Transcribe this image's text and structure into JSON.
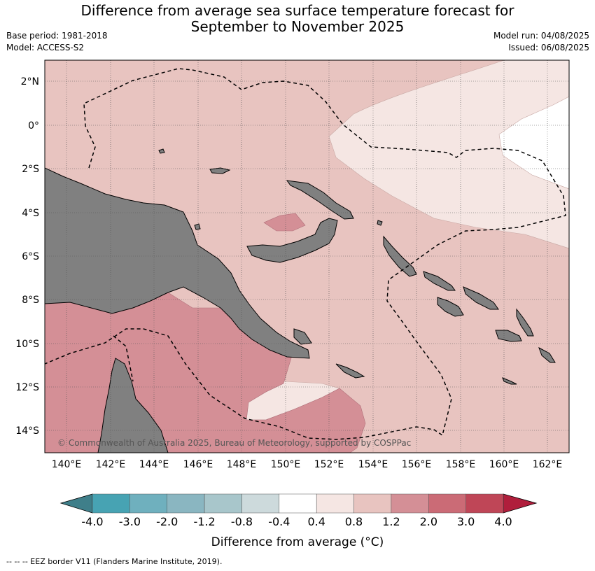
{
  "header": {
    "title_line1": "Difference from average sea surface temperature forecast for",
    "title_line2": "September to November 2025",
    "base_period": "Base period: 1981-2018",
    "model": "Model: ACCESS-S2",
    "model_run": "Model run: 04/08/2025",
    "issued": "Issued: 06/08/2025"
  },
  "map": {
    "lon_labels": [
      "140°E",
      "142°E",
      "144°E",
      "146°E",
      "148°E",
      "150°E",
      "152°E",
      "154°E",
      "156°E",
      "158°E",
      "160°E",
      "162°E"
    ],
    "lat_labels": [
      "2°N",
      "0°",
      "2°S",
      "4°S",
      "6°S",
      "8°S",
      "10°S",
      "12°S",
      "14°S"
    ],
    "copyright": "© Commonwealth of Australia 2025, Bureau of Meteorology, supported by COSPPac",
    "colors": {
      "land": "#808080",
      "grid": "#555555"
    }
  },
  "colorbar": {
    "boundaries": [
      "-4.0",
      "-3.0",
      "-2.0",
      "-1.2",
      "-0.8",
      "-0.4",
      "0.4",
      "0.8",
      "1.2",
      "2.0",
      "3.0",
      "4.0"
    ],
    "colors": [
      "#3f7f8a",
      "#47a3b3",
      "#6fb0be",
      "#8ab6c1",
      "#a8c6cb",
      "#cddadc",
      "#ffffff",
      "#f5e6e3",
      "#e8c4c0",
      "#d48f96",
      "#cb6b76",
      "#bf4657",
      "#b01e3c"
    ],
    "label": "Difference from average (°C)"
  },
  "footer": {
    "legend": "--  --  -- EEZ border V11 (Flanders Marine Institute, 2019)."
  }
}
